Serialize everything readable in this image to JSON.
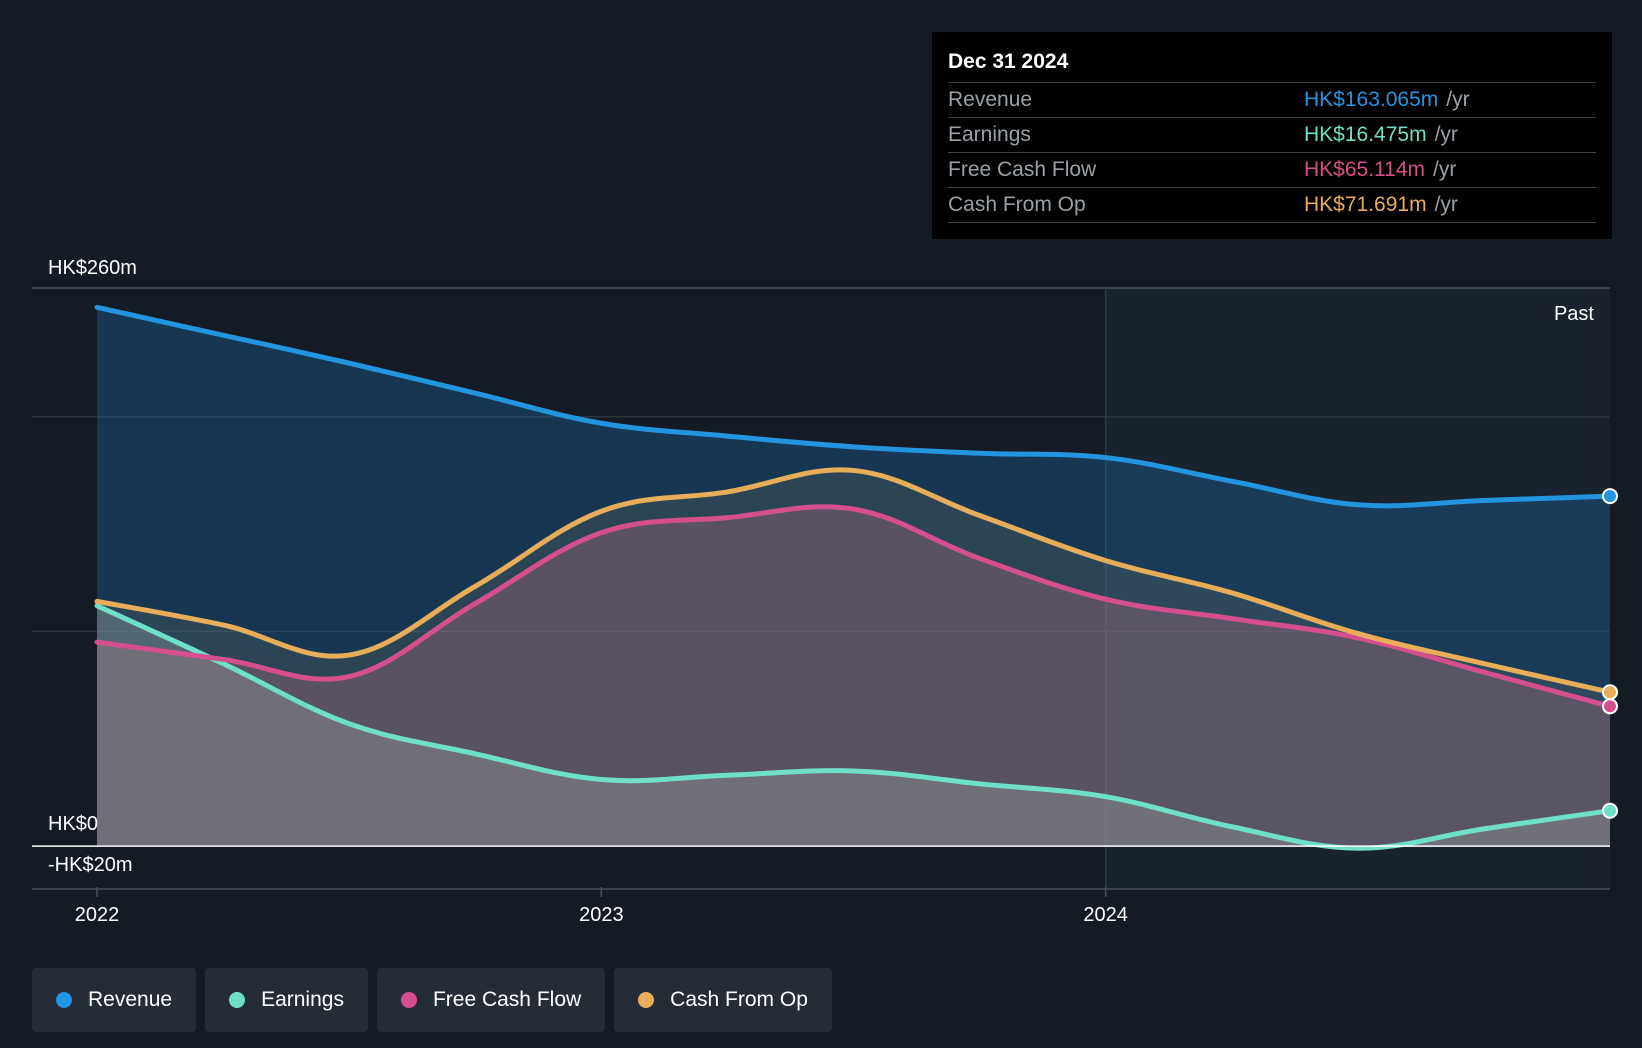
{
  "chart_data": {
    "type": "area",
    "x": [
      2022.0,
      2022.25,
      2022.5,
      2022.75,
      2023.0,
      2023.25,
      2023.5,
      2023.75,
      2024.0,
      2024.25,
      2024.5,
      2024.75,
      2025.0
    ],
    "series": [
      {
        "name": "Revenue",
        "color": "#2394df",
        "values": [
          251,
          238,
          225,
          211,
          197,
          191,
          186,
          183,
          181,
          170,
          159,
          161,
          163.065
        ]
      },
      {
        "name": "Earnings",
        "color": "#6ee0c7",
        "values": [
          112,
          85,
          57,
          43,
          31,
          33,
          35,
          29,
          23,
          9,
          -1,
          8,
          16.475
        ]
      },
      {
        "name": "Free Cash Flow",
        "color": "#d54f8c",
        "values": [
          95,
          87,
          79,
          113,
          146,
          153,
          157,
          134,
          115,
          106,
          97,
          81,
          65.114
        ]
      },
      {
        "name": "Cash From Op",
        "color": "#e8ad5a",
        "values": [
          114,
          103,
          89,
          121,
          156,
          165,
          175,
          154,
          133,
          118,
          99,
          85,
          71.691
        ]
      }
    ],
    "ylim": [
      -20,
      260
    ],
    "y_tick_labels": [
      "HK$260m",
      "HK$0",
      "-HK$20m"
    ],
    "x_ticks": [
      2022,
      2023,
      2024
    ],
    "x_tick_labels": [
      "2022",
      "2023",
      "2024"
    ],
    "past_start": 2024.0,
    "past_label": "Past",
    "legend_position": "bottom-left"
  },
  "tooltip": {
    "date": "Dec 31 2024",
    "rows": [
      {
        "label": "Revenue",
        "value": "HK$163.065m",
        "unit": "/yr",
        "color": "#2394df"
      },
      {
        "label": "Earnings",
        "value": "HK$16.475m",
        "unit": "/yr",
        "color": "#6ee0c7"
      },
      {
        "label": "Free Cash Flow",
        "value": "HK$65.114m",
        "unit": "/yr",
        "color": "#d54f8c"
      },
      {
        "label": "Cash From Op",
        "value": "HK$71.691m",
        "unit": "/yr",
        "color": "#e8ad5a"
      }
    ]
  },
  "legend": [
    {
      "label": "Revenue",
      "color": "#2394df"
    },
    {
      "label": "Earnings",
      "color": "#6ee0c7"
    },
    {
      "label": "Free Cash Flow",
      "color": "#d54f8c"
    },
    {
      "label": "Cash From Op",
      "color": "#e8ad5a"
    }
  ]
}
